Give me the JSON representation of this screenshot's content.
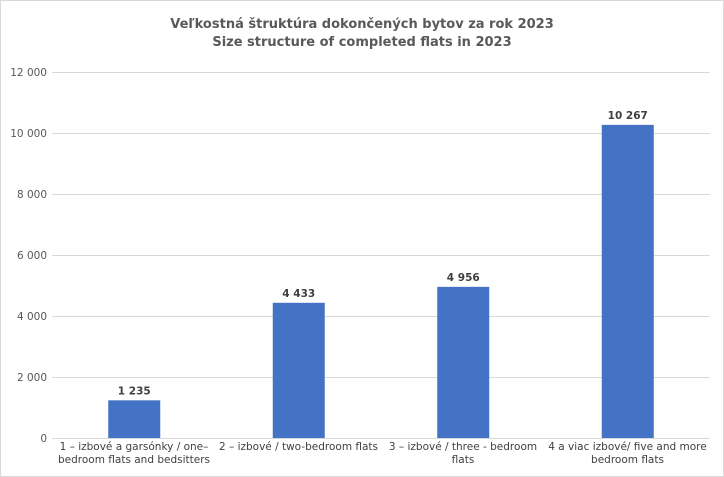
{
  "chart_data": {
    "type": "bar",
    "title": "Veľkostná štruktúra dokončených bytov za rok 2023",
    "subtitle": "Size structure of completed flats in 2023",
    "categories": [
      "1 – izbové a garsónky / one–bedroom flats and bedsitters",
      "2 – izbové / two-bedroom flats",
      "3 – izbové / three - bedroom flats",
      "4 a viac izbové/ five and more bedroom flats"
    ],
    "values": [
      1235,
      4433,
      4956,
      10267
    ],
    "data_labels": [
      "1 235",
      "4 433",
      "4 956",
      "10 267"
    ],
    "ylim": [
      0,
      12000
    ],
    "yticks": [
      0,
      2000,
      4000,
      6000,
      8000,
      10000,
      12000
    ],
    "ytick_labels": [
      "0",
      "2 000",
      "4 000",
      "6 000",
      "8 000",
      "10 000",
      "12 000"
    ],
    "grid": true,
    "xlabel": "",
    "ylabel": "",
    "bar_color": "#4472c4"
  }
}
